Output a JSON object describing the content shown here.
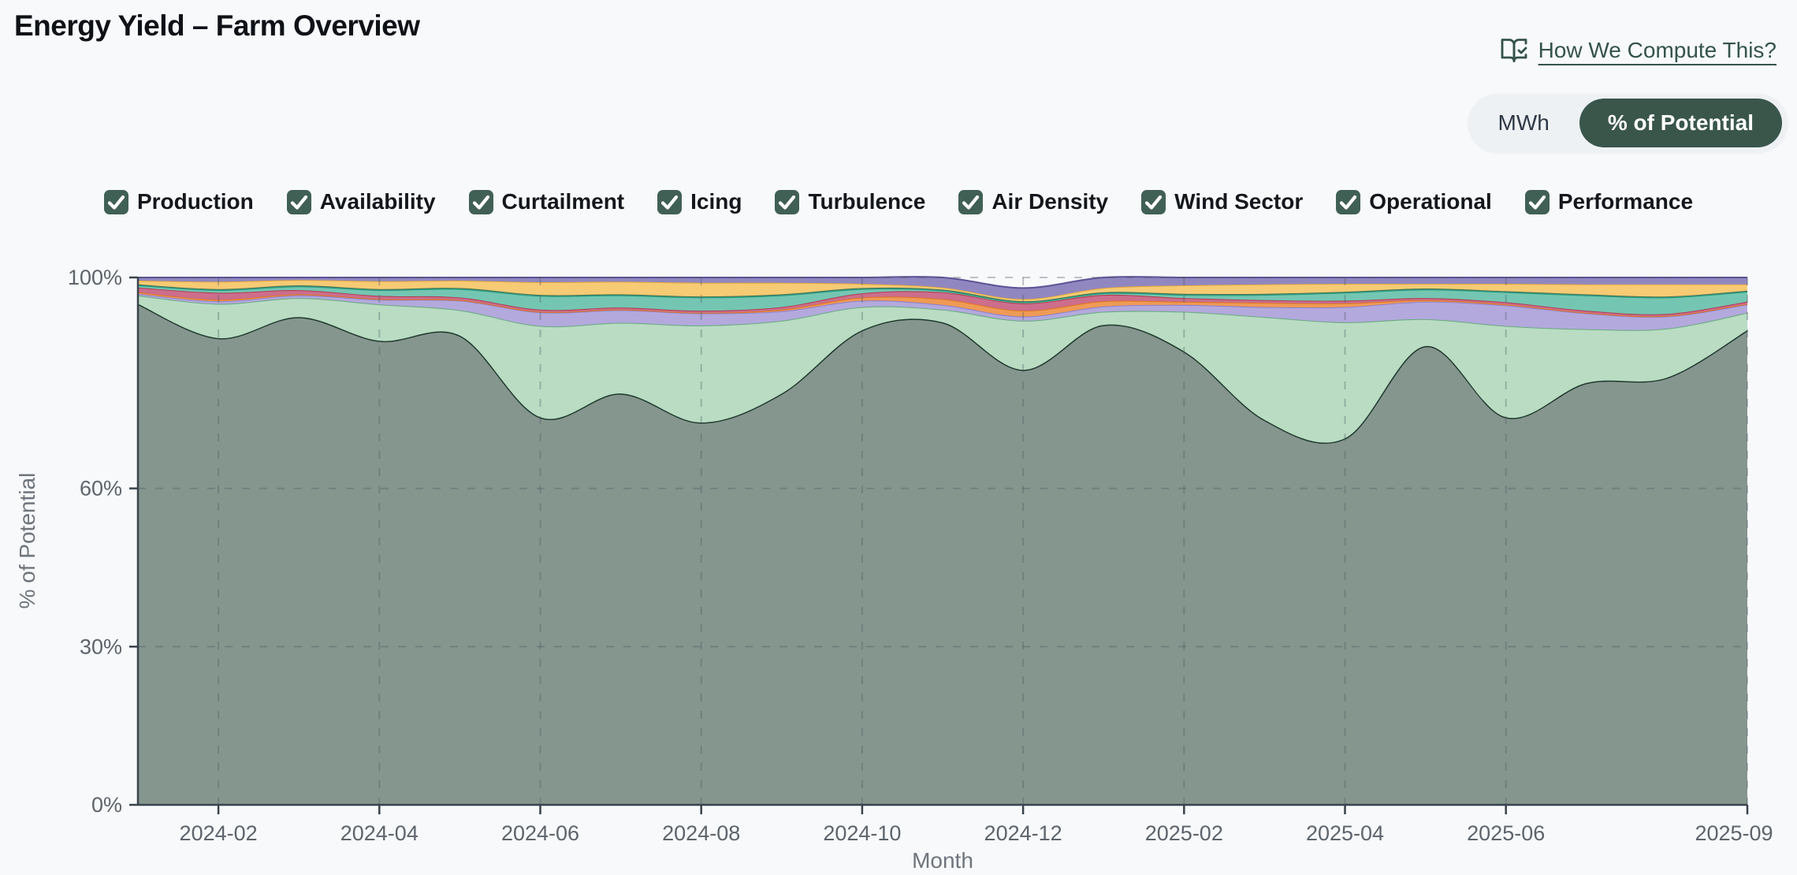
{
  "page": {
    "title": "Energy Yield – Farm Overview",
    "background": "#f7f9fb"
  },
  "help_link": {
    "label": "How We Compute This?",
    "icon": "book-open-check-icon",
    "color": "#35534a"
  },
  "unit_toggle": {
    "options": [
      {
        "label": "MWh",
        "active": false
      },
      {
        "label": "% of Potential",
        "active": true
      }
    ],
    "active_color": "#3a564b"
  },
  "checkbox_color": "#416055",
  "series_toggles": [
    {
      "label": "Production",
      "checked": true
    },
    {
      "label": "Availability",
      "checked": true
    },
    {
      "label": "Curtailment",
      "checked": true
    },
    {
      "label": "Icing",
      "checked": true
    },
    {
      "label": "Turbulence",
      "checked": true
    },
    {
      "label": "Air Density",
      "checked": true
    },
    {
      "label": "Wind Sector",
      "checked": true
    },
    {
      "label": "Operational",
      "checked": true
    },
    {
      "label": "Performance",
      "checked": true
    }
  ],
  "chart_data": {
    "type": "area",
    "stacked": true,
    "normalized": "percent-of-potential",
    "title": "",
    "xlabel": "Month",
    "ylabel": "% of Potential",
    "ylim": [
      0,
      100
    ],
    "grid": "dashed",
    "legend_position": "top-checkboxes",
    "yticks": [
      {
        "v": 0,
        "label": "0%"
      },
      {
        "v": 30,
        "label": "30%"
      },
      {
        "v": 60,
        "label": "60%"
      },
      {
        "v": 100,
        "label": "100%"
      }
    ],
    "x": [
      "2024-01",
      "2024-02",
      "2024-03",
      "2024-04",
      "2024-05",
      "2024-06",
      "2024-07",
      "2024-08",
      "2024-09",
      "2024-10",
      "2024-11",
      "2024-12",
      "2025-01",
      "2025-02",
      "2025-03",
      "2025-04",
      "2025-05",
      "2025-06",
      "2025-07",
      "2025-08",
      "2025-09"
    ],
    "xtick_labels": [
      "2024-02",
      "2024-04",
      "2024-06",
      "2024-08",
      "2024-10",
      "2024-12",
      "2025-02",
      "2025-04",
      "2025-06",
      "2025-09"
    ],
    "series": [
      {
        "name": "Production",
        "fill": "#85968e",
        "stroke": "#203a2e",
        "values": [
          95,
          88.5,
          92.5,
          88,
          89,
          73.5,
          78,
          72.5,
          78,
          90,
          91.5,
          82.5,
          91,
          86,
          73,
          69.5,
          87,
          73.5,
          80,
          81,
          90
        ]
      },
      {
        "name": "Availability",
        "fill": "#b9dcc3",
        "stroke": "#69aa7f",
        "values": [
          1.6,
          6.5,
          3.6,
          6.9,
          4.8,
          17.3,
          13.4,
          18.4,
          13.8,
          4.4,
          2.4,
          9.3,
          2.5,
          7.5,
          19.5,
          22,
          5.1,
          17.3,
          10.2,
          9.3,
          3.3
        ]
      },
      {
        "name": "Curtailment",
        "fill": "#b3a9dd",
        "stroke": "#8d7fca",
        "values": [
          0.3,
          0.5,
          0.5,
          0.9,
          1.8,
          2.6,
          2.4,
          2.3,
          1.8,
          1.2,
          0.9,
          0.8,
          1,
          1.3,
          1.9,
          2.9,
          3.3,
          3.9,
          3,
          2.3,
          1.6
        ]
      },
      {
        "name": "Icing",
        "fill": "#ef9a55",
        "stroke": "#dd7526",
        "values": [
          0.3,
          0.3,
          0.2,
          0.1,
          0.1,
          0.1,
          0.1,
          0.1,
          0.3,
          0.6,
          1.1,
          1.1,
          1,
          0.6,
          0.8,
          0.7,
          0.3,
          0.2,
          0.1,
          0.1,
          0.1
        ]
      },
      {
        "name": "Turbulence",
        "fill": "#cc6e8c",
        "stroke": "#b13b52",
        "values": [
          0.9,
          1.3,
          0.8,
          0.6,
          0.5,
          0.4,
          0.4,
          0.4,
          0.5,
          0.8,
          1.3,
          1.4,
          1.2,
          0.7,
          0.5,
          0.5,
          0.4,
          0.4,
          0.4,
          0.4,
          0.4
        ]
      },
      {
        "name": "Air Density",
        "fill": "#74c6b2",
        "stroke": "#23a183",
        "values": [
          0.4,
          0.5,
          0.7,
          1.1,
          1.6,
          2.6,
          2.3,
          2.5,
          2.2,
          0.8,
          0.3,
          0.2,
          0.3,
          0.6,
          1,
          1.5,
          1.6,
          1.9,
          2.9,
          3.1,
          1.9
        ]
      },
      {
        "name": "Wind Sector",
        "fill": "#5d9478",
        "stroke": "#3a7457",
        "values": [
          0.2,
          0.2,
          0.2,
          0.2,
          0.2,
          0.2,
          0.2,
          0.2,
          0.2,
          0.2,
          0.2,
          0.2,
          0.2,
          0.2,
          0.2,
          0.2,
          0.2,
          0.2,
          0.2,
          0.2,
          0.2
        ]
      },
      {
        "name": "Operational",
        "fill": "#f7ca74",
        "stroke": "#e3a93e",
        "values": [
          0.7,
          1.4,
          1,
          1.5,
          1.4,
          2.4,
          2.4,
          2.6,
          2.2,
          0.8,
          0.4,
          0.4,
          0.8,
          1.6,
          1.8,
          1.5,
          0.9,
          1.4,
          1.9,
          2.3,
          1.2
        ]
      },
      {
        "name": "Performance",
        "fill": "#9187c0",
        "stroke": "#5c5296",
        "values": [
          0.6,
          0.8,
          0.5,
          0.7,
          0.6,
          0.9,
          0.8,
          1,
          1,
          1.2,
          1.9,
          2.1,
          2,
          1.5,
          1.3,
          1.2,
          1.2,
          1.2,
          1.3,
          1.3,
          1.3
        ]
      }
    ]
  }
}
